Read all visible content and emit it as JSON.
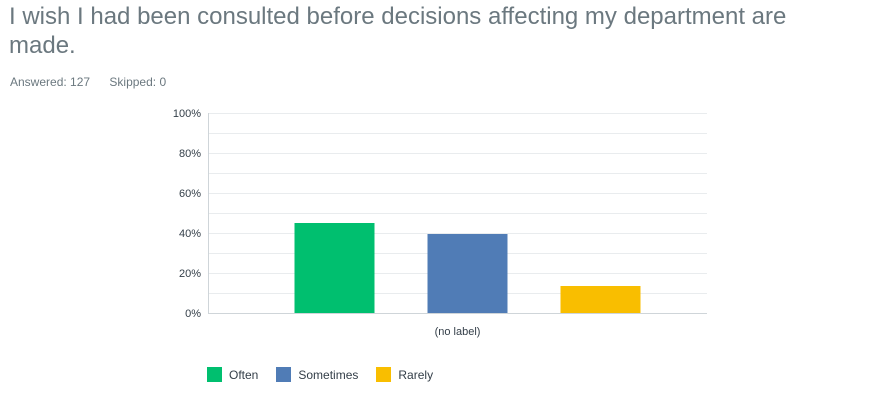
{
  "question": {
    "title": "I wish I had been consulted before decisions affecting my department are made."
  },
  "stats": {
    "answered_label": "Answered: 127",
    "skipped_label": "Skipped: 0"
  },
  "chart_data": {
    "type": "bar",
    "categories": [
      "(no label)"
    ],
    "series": [
      {
        "name": "Often",
        "values": [
          45
        ],
        "color": "#00bf6f"
      },
      {
        "name": "Sometimes",
        "values": [
          39.5
        ],
        "color": "#507cb6"
      },
      {
        "name": "Rarely",
        "values": [
          13.5
        ],
        "color": "#f9be00"
      }
    ],
    "y_ticks": [
      "0%",
      "20%",
      "40%",
      "60%",
      "80%",
      "100%"
    ],
    "ylim": [
      0,
      100
    ],
    "grid": true,
    "legend_position": "bottom-left"
  },
  "colors": {
    "grid": "#e9ecee",
    "axis": "#cfd5d9",
    "tick_text": "#333e48"
  }
}
